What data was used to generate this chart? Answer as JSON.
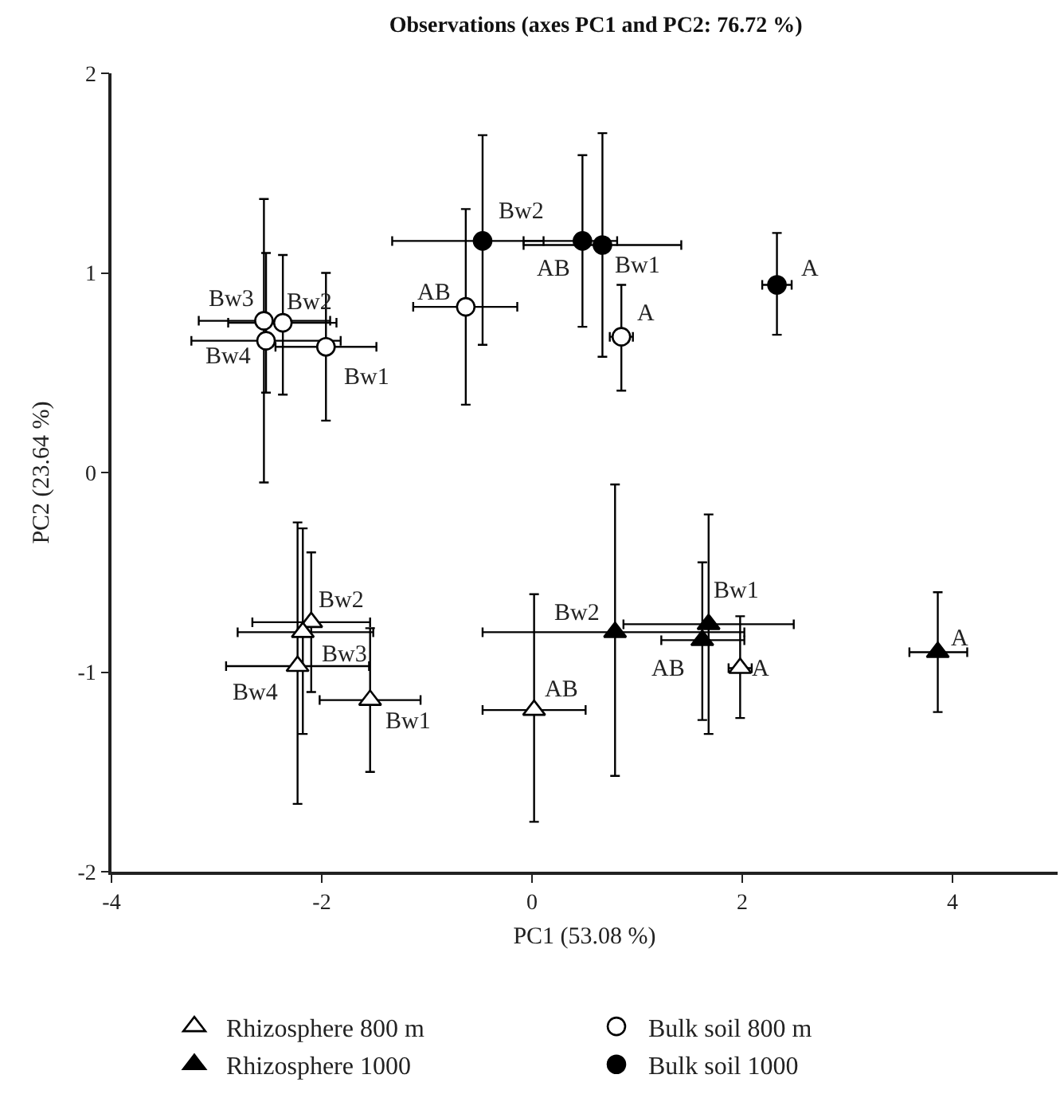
{
  "chart_data": {
    "type": "scatter",
    "title": "Observations (axes PC1 and PC2: 76.72 %)",
    "xlabel": "PC1 (53.08 %)",
    "ylabel": "PC2 (23.64 %)",
    "xlim": [
      -4,
      5
    ],
    "xticks": [
      -4,
      -2,
      0,
      2,
      4
    ],
    "ylim": [
      -2,
      2
    ],
    "yticks": [
      -2,
      -1,
      0,
      1,
      2
    ],
    "grid": false,
    "legend": "bottom",
    "series": [
      {
        "name": "Rhizosphere 800 m",
        "color": "#ffffff",
        "marker": "triangle",
        "x": [
          -2.1,
          -2.18,
          -2.23,
          -1.54,
          0.02,
          1.98
        ],
        "values": [
          -0.75,
          -0.8,
          -0.97,
          -1.14,
          -1.19,
          -0.98
        ],
        "xerrors": [
          [
            -2.66,
            -1.54
          ],
          [
            -2.8,
            -1.51
          ],
          [
            -2.91,
            -1.55
          ],
          [
            -2.02,
            -1.06
          ],
          [
            -0.47,
            0.51
          ],
          [
            1.87,
            2.09
          ]
        ],
        "errors": [
          [
            -1.1,
            -0.4
          ],
          [
            -1.31,
            -0.28
          ],
          [
            -1.66,
            -0.25
          ],
          [
            -1.5,
            -0.78
          ],
          [
            -1.75,
            -0.61
          ],
          [
            -1.23,
            -0.72
          ]
        ]
      },
      {
        "name": "Bulk soil 800 m",
        "color": "#ffffff",
        "marker": "circle",
        "x": [
          -2.55,
          -2.37,
          -2.53,
          -1.96,
          -0.63,
          0.85
        ],
        "values": [
          0.76,
          0.75,
          0.66,
          0.63,
          0.83,
          0.68
        ],
        "xerrors": [
          [
            -3.17,
            -1.92
          ],
          [
            -2.89,
            -1.86
          ],
          [
            -3.24,
            -1.82
          ],
          [
            -2.44,
            -1.48
          ],
          [
            -1.13,
            -0.14
          ],
          [
            0.74,
            0.96
          ]
        ],
        "errors": [
          [
            -0.05,
            1.37
          ],
          [
            0.39,
            1.09
          ],
          [
            0.4,
            1.1
          ],
          [
            0.26,
            1.0
          ],
          [
            0.34,
            1.32
          ],
          [
            0.41,
            0.94
          ]
        ]
      },
      {
        "name": "Rhizosphere 1000",
        "color": "#000000",
        "marker": "triangle",
        "x": [
          0.79,
          1.68,
          1.62,
          3.86
        ],
        "values": [
          -0.8,
          -0.76,
          -0.84,
          -0.9
        ],
        "xerrors": [
          [
            -0.47,
            2.02
          ],
          [
            0.87,
            2.49
          ],
          [
            1.23,
            2.02
          ],
          [
            3.59,
            4.14
          ]
        ],
        "errors": [
          [
            -1.52,
            -0.06
          ],
          [
            -1.31,
            -0.21
          ],
          [
            -1.24,
            -0.45
          ],
          [
            -1.2,
            -0.6
          ]
        ]
      },
      {
        "name": "Bulk soil 1000",
        "color": "#000000",
        "marker": "circle",
        "x": [
          -0.47,
          0.48,
          0.67,
          2.33
        ],
        "values": [
          1.16,
          1.16,
          1.14,
          0.94
        ],
        "xerrors": [
          [
            -1.33,
            0.11
          ],
          [
            -0.08,
            0.81
          ],
          [
            -0.08,
            1.42
          ],
          [
            2.19,
            2.47
          ]
        ],
        "errors": [
          [
            0.64,
            1.69
          ],
          [
            0.73,
            1.59
          ],
          [
            0.58,
            1.7
          ],
          [
            0.69,
            1.2
          ]
        ]
      }
    ],
    "annotations": [
      {
        "text": "Bw2",
        "x": -2.1,
        "y": -0.75
      },
      {
        "text": "Bw3",
        "x": -2.18,
        "y": -0.8
      },
      {
        "text": "Bw4",
        "x": -2.23,
        "y": -0.97
      },
      {
        "text": "Bw1",
        "x": -1.54,
        "y": -1.14
      },
      {
        "text": "AB",
        "x": 0.02,
        "y": -1.19
      },
      {
        "text": "A",
        "x": 1.98,
        "y": -0.98
      },
      {
        "text": "Bw3",
        "x": -2.55,
        "y": 0.76
      },
      {
        "text": "Bw2",
        "x": -2.37,
        "y": 0.75
      },
      {
        "text": "Bw4",
        "x": -2.53,
        "y": 0.66
      },
      {
        "text": "Bw1",
        "x": -1.96,
        "y": 0.63
      },
      {
        "text": "AB",
        "x": -0.63,
        "y": 0.83
      },
      {
        "text": "A",
        "x": 0.85,
        "y": 0.68
      },
      {
        "text": "Bw2",
        "x": 0.79,
        "y": -0.8
      },
      {
        "text": "Bw1",
        "x": 1.68,
        "y": -0.76
      },
      {
        "text": "AB",
        "x": 1.62,
        "y": -0.84
      },
      {
        "text": "A",
        "x": 3.86,
        "y": -0.9
      },
      {
        "text": "Bw2",
        "x": -0.47,
        "y": 1.16
      },
      {
        "text": "AB",
        "x": 0.48,
        "y": 1.16
      },
      {
        "text": "Bw1",
        "x": 0.67,
        "y": 1.14
      },
      {
        "text": "A",
        "x": 2.33,
        "y": 0.94
      }
    ]
  }
}
